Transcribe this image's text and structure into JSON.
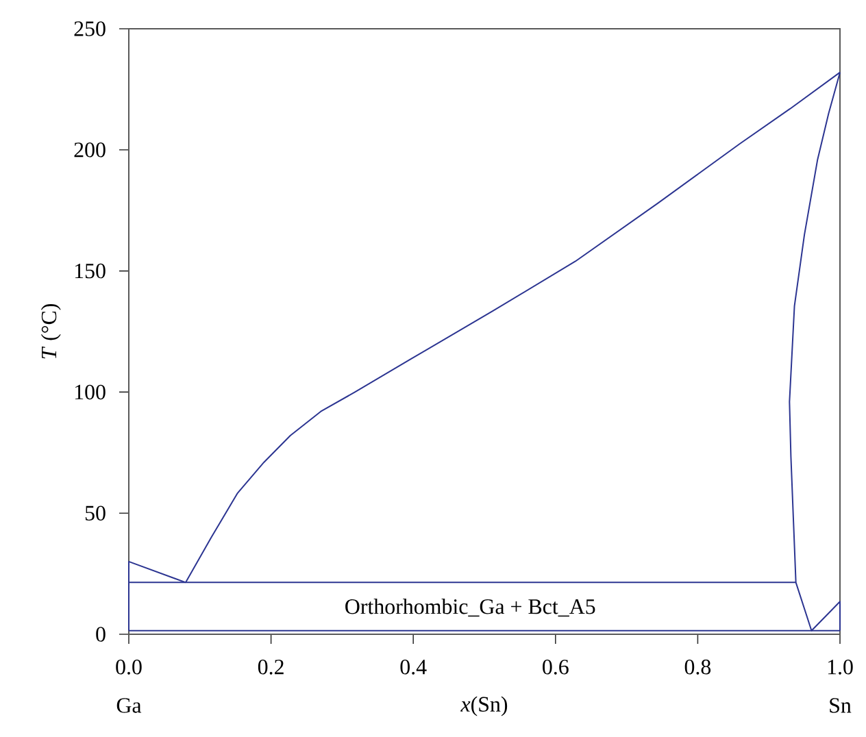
{
  "chart_data": {
    "type": "line",
    "xlabel": "*x*(Sn)",
    "ylabel": "*T* (°C)",
    "xlim": [
      0,
      1
    ],
    "ylim": [
      0,
      250
    ],
    "xticks": [
      {
        "value": 0,
        "label": "0.0"
      },
      {
        "value": 0.2,
        "label": "0.2"
      },
      {
        "value": 0.4,
        "label": "0.4"
      },
      {
        "value": 0.6,
        "label": "0.6"
      },
      {
        "value": 0.8,
        "label": "0.8"
      },
      {
        "value": 1,
        "label": "1.0"
      }
    ],
    "yticks": [
      0,
      50,
      100,
      150,
      200,
      250
    ],
    "grid": false,
    "marker": "none",
    "line_style": "solid",
    "series": [
      {
        "color": "#2b3491",
        "x": [
          0,
          0,
          0.08
        ],
        "values": [
          1.5,
          30,
          21.4
        ]
      },
      {
        "color": "#2b3491",
        "x": [
          0.08,
          0.116,
          0.153,
          0.19,
          0.227,
          0.27,
          0.318,
          0.397,
          0.512,
          0.628,
          0.744,
          0.859,
          0.93,
          1.0
        ],
        "values": [
          21.4,
          40,
          58.3,
          71,
          82,
          92,
          100,
          113.7,
          133.5,
          154,
          178,
          202.5,
          217,
          232
        ]
      },
      {
        "color": "#2b3491",
        "x": [
          1.0,
          0.984,
          0.9685,
          0.95,
          0.936,
          0.929,
          0.931,
          0.938,
          0.96,
          1.0,
          1.0
        ],
        "values": [
          232,
          215,
          196,
          165,
          135.6,
          96,
          73.4,
          21.4,
          1.5,
          13.5,
          1.5
        ]
      },
      {
        "color": "#2b3491",
        "x": [
          0,
          0.938
        ],
        "values": [
          21.4,
          21.4
        ]
      },
      {
        "color": "#2b3491",
        "x": [
          0,
          1
        ],
        "values": [
          1.5,
          1.5
        ]
      }
    ],
    "annotations": [
      "Orthorhombic_Ga + Bct_A5",
      "Ga",
      "Sn"
    ]
  }
}
